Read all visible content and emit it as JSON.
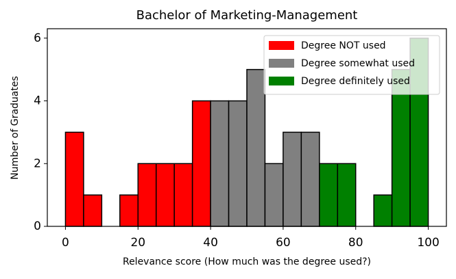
{
  "chart_data": {
    "type": "histogram",
    "title": "Bachelor of Marketing-Management",
    "xlabel": "Relevance score (How much was the degree used?)",
    "ylabel": "Number of Graduates",
    "bins": [
      0,
      5,
      10,
      15,
      20,
      25,
      30,
      35,
      40,
      45,
      50,
      55,
      60,
      65,
      70,
      75,
      80,
      85,
      90,
      95,
      100
    ],
    "series": [
      {
        "name": "Degree NOT used",
        "color": "#ff0000",
        "values": [
          3,
          1,
          0,
          1,
          2,
          2,
          2,
          4,
          0,
          0,
          0,
          0,
          0,
          0,
          0,
          0,
          0,
          0,
          0,
          0
        ]
      },
      {
        "name": "Degree somewhat used",
        "color": "#808080",
        "values": [
          0,
          0,
          0,
          0,
          0,
          0,
          0,
          0,
          4,
          4,
          5,
          2,
          3,
          3,
          0,
          0,
          0,
          0,
          0,
          0
        ]
      },
      {
        "name": "Degree definitely used",
        "color": "#008000",
        "values": [
          0,
          0,
          0,
          0,
          0,
          0,
          0,
          0,
          0,
          0,
          0,
          0,
          0,
          0,
          2,
          2,
          0,
          1,
          5,
          6
        ]
      }
    ],
    "xlim": [
      -5,
      105
    ],
    "ylim": [
      0,
      6.3
    ],
    "xticks": [
      0,
      20,
      40,
      60,
      80,
      100
    ],
    "yticks": [
      0,
      2,
      4,
      6
    ],
    "legend": "upper right"
  }
}
